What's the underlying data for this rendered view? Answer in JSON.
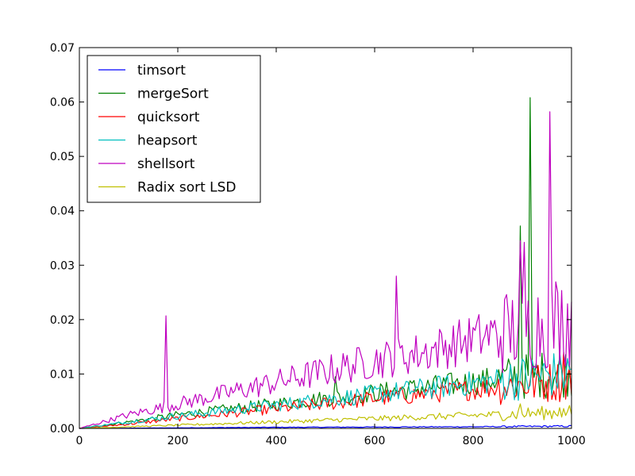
{
  "chart_data": {
    "type": "line",
    "title": "",
    "xlabel": "",
    "ylabel": "",
    "xlim": [
      0,
      1000
    ],
    "ylim": [
      0,
      0.07
    ],
    "xticks": [
      "0",
      "200",
      "400",
      "600",
      "800",
      "1000"
    ],
    "yticks": [
      "0.00",
      "0.01",
      "0.02",
      "0.03",
      "0.04",
      "0.05",
      "0.06",
      "0.07"
    ],
    "grid": false,
    "legend_position": "top-left",
    "series": [
      {
        "name": "timsort",
        "color": "#0000ff",
        "x": [
          0,
          100,
          200,
          300,
          400,
          500,
          600,
          700,
          800,
          900,
          1000
        ],
        "y": [
          0,
          5e-05,
          0.0001,
          0.00015,
          0.0002,
          0.00022,
          0.00025,
          0.00028,
          0.0003,
          0.00035,
          0.0004
        ],
        "spikes": []
      },
      {
        "name": "mergeSort",
        "color": "#008000",
        "x": [
          0,
          100,
          200,
          300,
          400,
          500,
          600,
          700,
          800,
          900,
          1000
        ],
        "y": [
          0,
          0.0012,
          0.0025,
          0.0035,
          0.0045,
          0.0055,
          0.0065,
          0.0075,
          0.0085,
          0.0095,
          0.0105
        ],
        "spikes": [
          [
            520,
            0.0095
          ],
          [
            895,
            0.0372
          ],
          [
            915,
            0.0608
          ],
          [
            970,
            0.016
          ]
        ]
      },
      {
        "name": "quicksort",
        "color": "#ff0000",
        "x": [
          0,
          100,
          200,
          300,
          400,
          500,
          600,
          700,
          800,
          900,
          1000
        ],
        "y": [
          0,
          0.0008,
          0.0018,
          0.0027,
          0.0036,
          0.0045,
          0.0055,
          0.0063,
          0.0072,
          0.008,
          0.009
        ],
        "spikes": [
          [
            910,
            0.016
          ],
          [
            985,
            0.014
          ]
        ]
      },
      {
        "name": "heapsort",
        "color": "#00bfbf",
        "x": [
          0,
          100,
          200,
          300,
          400,
          500,
          600,
          700,
          800,
          900,
          1000
        ],
        "y": [
          0,
          0.0012,
          0.0023,
          0.0033,
          0.0043,
          0.0053,
          0.0063,
          0.0073,
          0.0083,
          0.0093,
          0.0103
        ],
        "spikes": [
          [
            910,
            0.019
          ],
          [
            990,
            0.018
          ]
        ]
      },
      {
        "name": "shellsort",
        "color": "#bf00bf",
        "x": [
          0,
          100,
          200,
          300,
          400,
          500,
          600,
          700,
          800,
          900,
          1000
        ],
        "y": [
          0,
          0.0025,
          0.0045,
          0.0065,
          0.0085,
          0.0105,
          0.0125,
          0.014,
          0.0165,
          0.0185,
          0.0205
        ],
        "spikes": [
          [
            176,
            0.0207
          ],
          [
            270,
            0.0132
          ],
          [
            645,
            0.028
          ],
          [
            818,
            0.0303
          ],
          [
            895,
            0.0345
          ],
          [
            905,
            0.0342
          ],
          [
            955,
            0.0582
          ],
          [
            970,
            0.0305
          ]
        ]
      },
      {
        "name": "Radix sort LSD",
        "color": "#bfbf00",
        "x": [
          0,
          100,
          200,
          300,
          400,
          500,
          600,
          700,
          800,
          900,
          1000
        ],
        "y": [
          0,
          0.0003,
          0.0006,
          0.0009,
          0.0012,
          0.0015,
          0.0018,
          0.0021,
          0.0024,
          0.0027,
          0.003
        ],
        "spikes": [
          [
            895,
            0.0045
          ],
          [
            975,
            0.0038
          ]
        ]
      }
    ]
  }
}
